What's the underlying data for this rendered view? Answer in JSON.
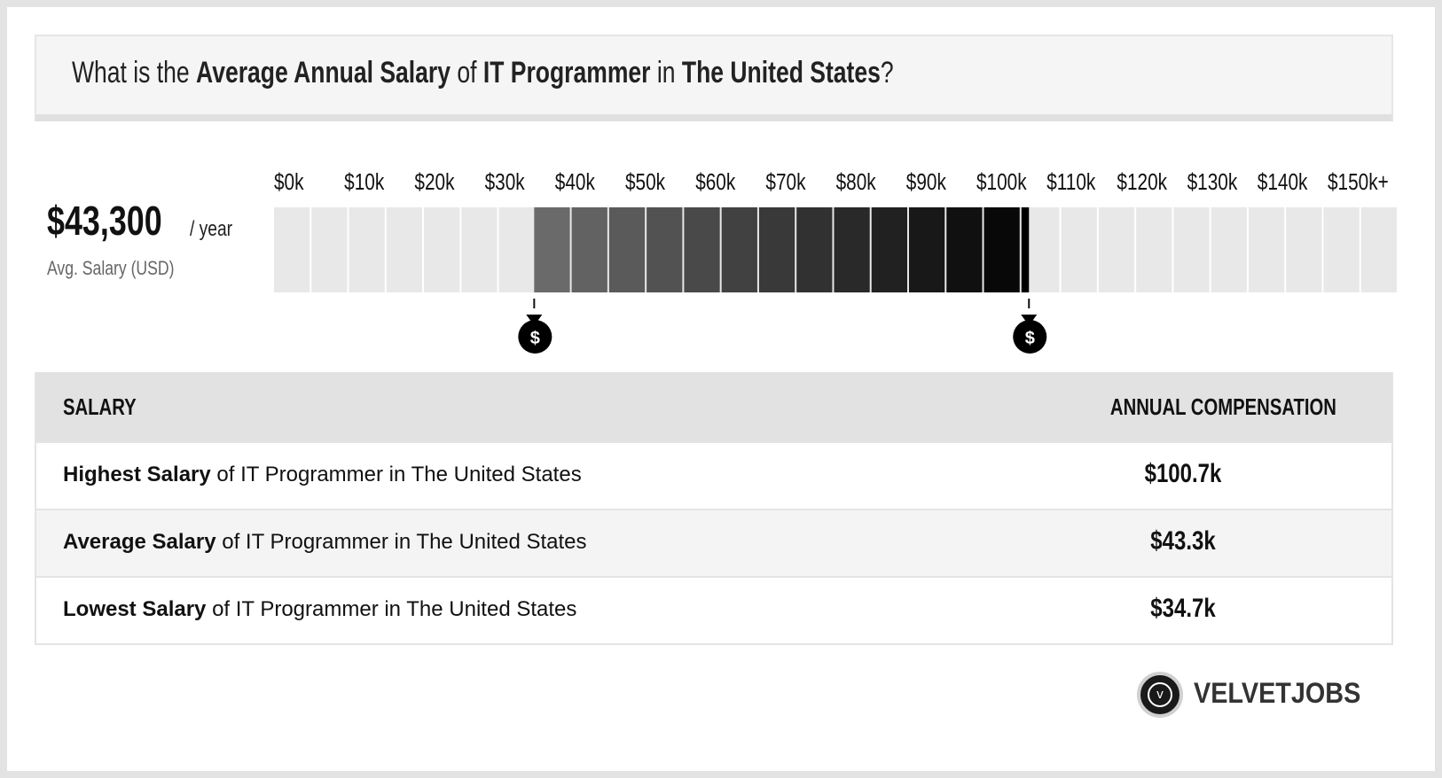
{
  "header": {
    "prefix": "What is the",
    "metric": "Average Annual Salary",
    "of": "of",
    "job": "IT Programmer",
    "in": "in",
    "location": "The United States",
    "suffix": "?"
  },
  "summary": {
    "value": "$43,300",
    "unit": "/ year",
    "label": "Avg. Salary (USD)"
  },
  "chart_data": {
    "type": "bar",
    "tick_labels": [
      "$0k",
      "$10k",
      "$20k",
      "$30k",
      "$40k",
      "$50k",
      "$60k",
      "$70k",
      "$80k",
      "$90k",
      "$100k",
      "$110k",
      "$120k",
      "$130k",
      "$140k",
      "$150k+"
    ],
    "range_low": 34.7,
    "range_high": 100.7,
    "average": 43.3,
    "xlim": [
      0,
      150
    ],
    "unit": "k USD",
    "marker_icon": "money-bag-icon"
  },
  "table": {
    "col_left": "SALARY",
    "col_right": "ANNUAL COMPENSATION",
    "rows": [
      {
        "bold": "Highest Salary",
        "rest": " of IT Programmer in The United States",
        "value": "$100.7k"
      },
      {
        "bold": "Average Salary",
        "rest": " of IT Programmer in The United States",
        "value": "$43.3k"
      },
      {
        "bold": "Lowest Salary",
        "rest": " of IT Programmer in The United States",
        "value": "$34.7k"
      }
    ]
  },
  "logo": {
    "text": "VELVETJOBS",
    "glyph": "v",
    "icon": "velvetjobs-logo-icon"
  },
  "colors": {
    "background": "#e3e3e3",
    "bar_empty": "#e8e8e8",
    "bar_dark": "#000000",
    "bar_light": "#6a6a6a"
  }
}
